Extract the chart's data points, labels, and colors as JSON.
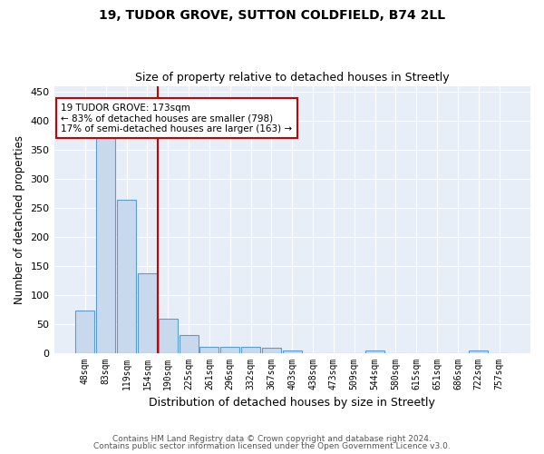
{
  "title": "19, TUDOR GROVE, SUTTON COLDFIELD, B74 2LL",
  "subtitle": "Size of property relative to detached houses in Streetly",
  "xlabel": "Distribution of detached houses by size in Streetly",
  "ylabel": "Number of detached properties",
  "categories": [
    "48sqm",
    "83sqm",
    "119sqm",
    "154sqm",
    "190sqm",
    "225sqm",
    "261sqm",
    "296sqm",
    "332sqm",
    "367sqm",
    "403sqm",
    "438sqm",
    "473sqm",
    "509sqm",
    "544sqm",
    "580sqm",
    "615sqm",
    "651sqm",
    "686sqm",
    "722sqm",
    "757sqm"
  ],
  "values": [
    73,
    370,
    263,
    137,
    58,
    30,
    10,
    10,
    11,
    8,
    4,
    0,
    0,
    0,
    4,
    0,
    0,
    0,
    0,
    4,
    0
  ],
  "bar_color": "#c8d9ee",
  "bar_edge_color": "#5b9bd5",
  "vline_color": "#cc0000",
  "annotation_text": "19 TUDOR GROVE: 173sqm\n← 83% of detached houses are smaller (798)\n17% of semi-detached houses are larger (163) →",
  "annotation_box_color": "white",
  "annotation_box_edge_color": "#cc0000",
  "ylim": [
    0,
    460
  ],
  "yticks": [
    0,
    50,
    100,
    150,
    200,
    250,
    300,
    350,
    400,
    450
  ],
  "footer_line1": "Contains HM Land Registry data © Crown copyright and database right 2024.",
  "footer_line2": "Contains public sector information licensed under the Open Government Licence v3.0.",
  "plot_bg_color": "#e8eef8",
  "fig_bg_color": "#ffffff",
  "grid_color": "#ffffff"
}
